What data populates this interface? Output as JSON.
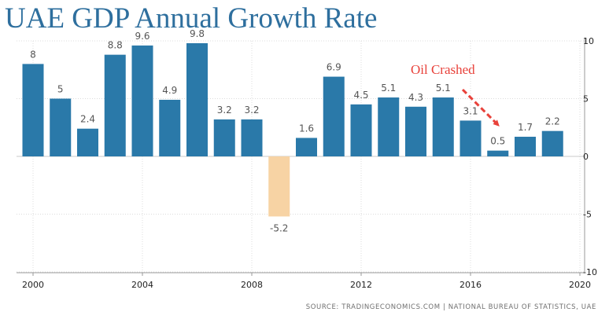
{
  "title": "UAE GDP Annual Growth Rate",
  "source": "SOURCE: TRADINGECONOMICS.COM | NATIONAL BUREAU OF STATISTICS, UAE",
  "annotation": {
    "text": "Oil Crashed",
    "color": "#e8413a"
  },
  "colors": {
    "positive_bar": "#2a79a9",
    "negative_bar": "#f7d3a4",
    "label_positive": "#555555",
    "label_negative": "#555555",
    "axis_text": "#222222",
    "grid": "#dcdcdc"
  },
  "chart_data": {
    "type": "bar",
    "title": "UAE GDP Annual Growth Rate",
    "xlabel": "",
    "ylabel": "",
    "categories": [
      "2000",
      "2001",
      "2002",
      "2003",
      "2004",
      "2005",
      "2006",
      "2007",
      "2008",
      "2009",
      "2010",
      "2011",
      "2012",
      "2013",
      "2014",
      "2015",
      "2016",
      "2017",
      "2018",
      "2019"
    ],
    "values": [
      8,
      5,
      2.4,
      8.8,
      9.6,
      4.9,
      9.8,
      3.2,
      3.2,
      -5.2,
      1.6,
      6.9,
      4.5,
      5.1,
      4.3,
      5.1,
      3.1,
      0.5,
      1.7,
      2.2
    ],
    "data_labels": [
      "8",
      "5",
      "2.4",
      "8.8",
      "9.6",
      "4.9",
      "9.8",
      "3.2",
      "3.2",
      "-5.2",
      "1.6",
      "6.9",
      "4.5",
      "5.1",
      "4.3",
      "5.1",
      "3.1",
      "0.5",
      "1.7",
      "2.2"
    ],
    "ylim": [
      -10,
      10
    ],
    "y_ticks": [
      10,
      5,
      0,
      -5,
      -10
    ],
    "x_ticks": [
      2000,
      2004,
      2008,
      2012,
      2016,
      2020
    ],
    "y_axis_position": "right",
    "grid": true,
    "legend": "none"
  }
}
